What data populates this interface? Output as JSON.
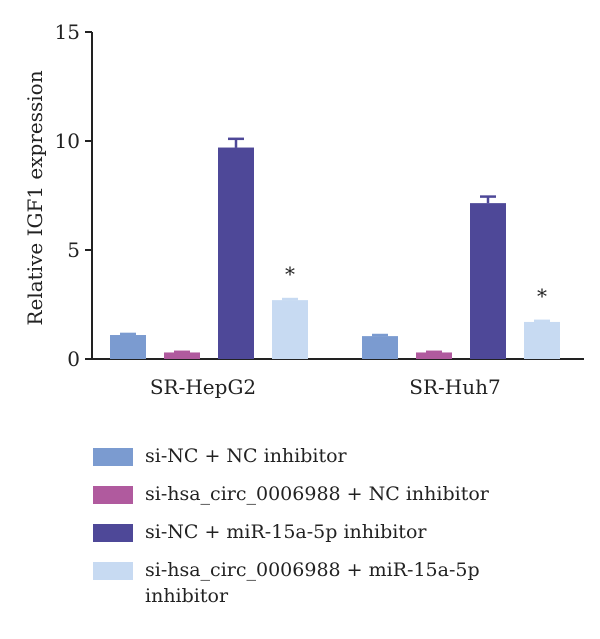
{
  "chart_data": {
    "type": "bar",
    "ylabel": "Relative IGF1 expression",
    "ylim": [
      0,
      15
    ],
    "yticks": [
      0,
      5,
      10,
      15
    ],
    "categories": [
      "SR-HepG2",
      "SR-Huh7"
    ],
    "series": [
      {
        "name": "si-NC + NC inhibitor",
        "color": "#7b9bd0",
        "values": [
          1.1,
          1.05
        ],
        "errors": [
          0.05,
          0.05
        ],
        "significance": [
          "",
          ""
        ]
      },
      {
        "name": "si-hsa_circ_0006988 + NC inhibitor",
        "color": "#b05a9e",
        "values": [
          0.3,
          0.3
        ],
        "errors": [
          0.03,
          0.03
        ],
        "significance": [
          "",
          ""
        ]
      },
      {
        "name": "si-NC + miR-15a-5p inhibitor",
        "color": "#4e4898",
        "values": [
          9.7,
          7.15
        ],
        "errors": [
          0.4,
          0.3
        ],
        "significance": [
          "",
          ""
        ]
      },
      {
        "name": "si-hsa_circ_0006988 + miR-15a-5p inhibitor",
        "color": "#c7daf2",
        "values": [
          2.7,
          1.7
        ],
        "errors": [
          0.05,
          0.05
        ],
        "significance": [
          "*",
          "*"
        ]
      }
    ],
    "legend_position": "bottom"
  }
}
